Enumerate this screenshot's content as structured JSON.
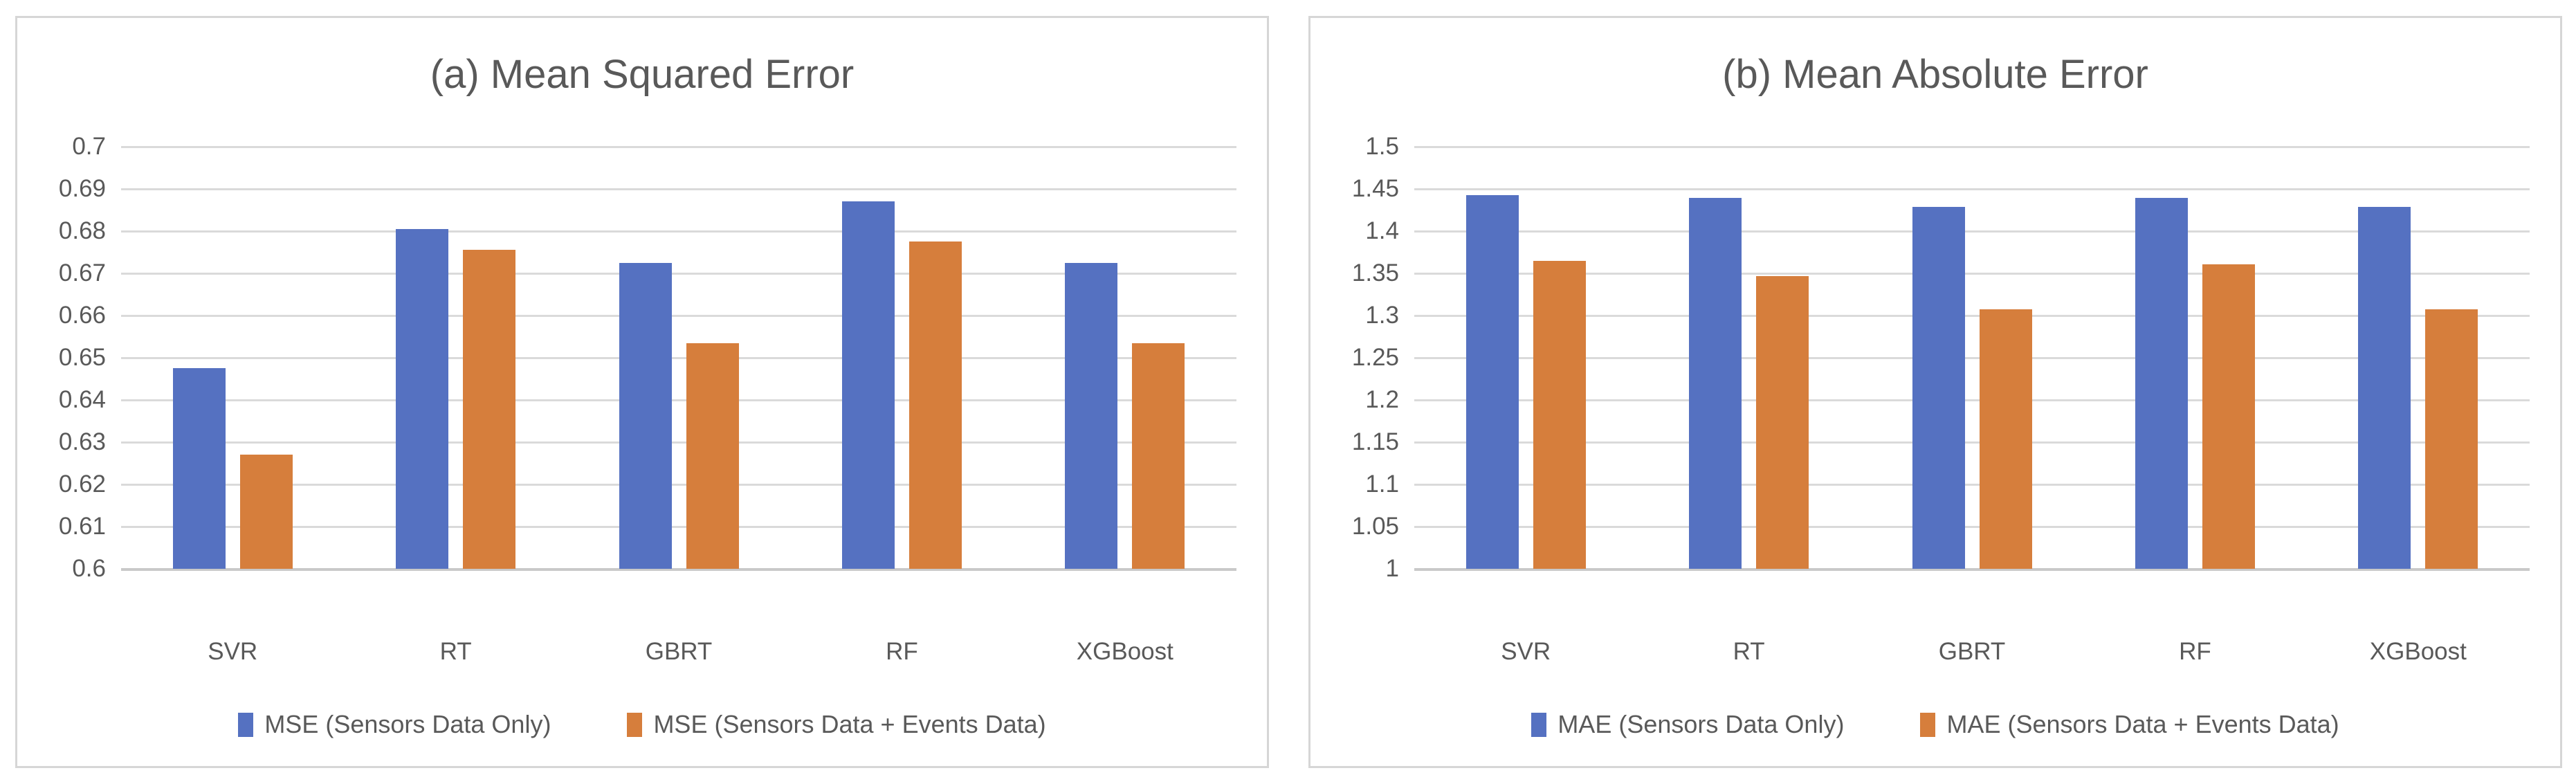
{
  "page": {
    "background": "#ffffff",
    "text_color": "#595959",
    "gridline_color": "#dadada",
    "panel_border_color": "#d6d6d6"
  },
  "chart_data": [
    {
      "type": "bar",
      "title": "(a) Mean Squared Error",
      "xlabel": "",
      "ylabel": "",
      "ylim": [
        0.6,
        0.7
      ],
      "ytick_step": 0.01,
      "yticks": [
        "0.7",
        "0.69",
        "0.68",
        "0.67",
        "0.66",
        "0.65",
        "0.64",
        "0.63",
        "0.62",
        "0.61",
        "0.6"
      ],
      "grid": true,
      "legend_position": "bottom",
      "categories": [
        "SVR",
        "RT",
        "GBRT",
        "RF",
        "XGBoost"
      ],
      "series": [
        {
          "name": "MSE (Sensors Data Only)",
          "color": "#5571c1",
          "values": [
            0.6475,
            0.6805,
            0.6725,
            0.687,
            0.6725
          ]
        },
        {
          "name": "MSE (Sensors Data + Events Data)",
          "color": "#d67e3c",
          "values": [
            0.627,
            0.6755,
            0.6535,
            0.6775,
            0.6535
          ]
        }
      ]
    },
    {
      "type": "bar",
      "title": "(b) Mean Absolute Error",
      "xlabel": "",
      "ylabel": "",
      "ylim": [
        1.0,
        1.5
      ],
      "ytick_step": 0.05,
      "yticks": [
        "1.5",
        "1.45",
        "1.4",
        "1.35",
        "1.3",
        "1.25",
        "1.2",
        "1.15",
        "1.1",
        "1.05",
        "1"
      ],
      "grid": true,
      "legend_position": "bottom",
      "categories": [
        "SVR",
        "RT",
        "GBRT",
        "RF",
        "XGBoost"
      ],
      "series": [
        {
          "name": "MAE (Sensors Data Only)",
          "color": "#5571c1",
          "values": [
            1.4425,
            1.4395,
            1.4285,
            1.4395,
            1.4285
          ]
        },
        {
          "name": "MAE (Sensors Data + Events Data)",
          "color": "#d67e3c",
          "values": [
            1.365,
            1.347,
            1.307,
            1.361,
            1.307
          ]
        }
      ]
    }
  ]
}
